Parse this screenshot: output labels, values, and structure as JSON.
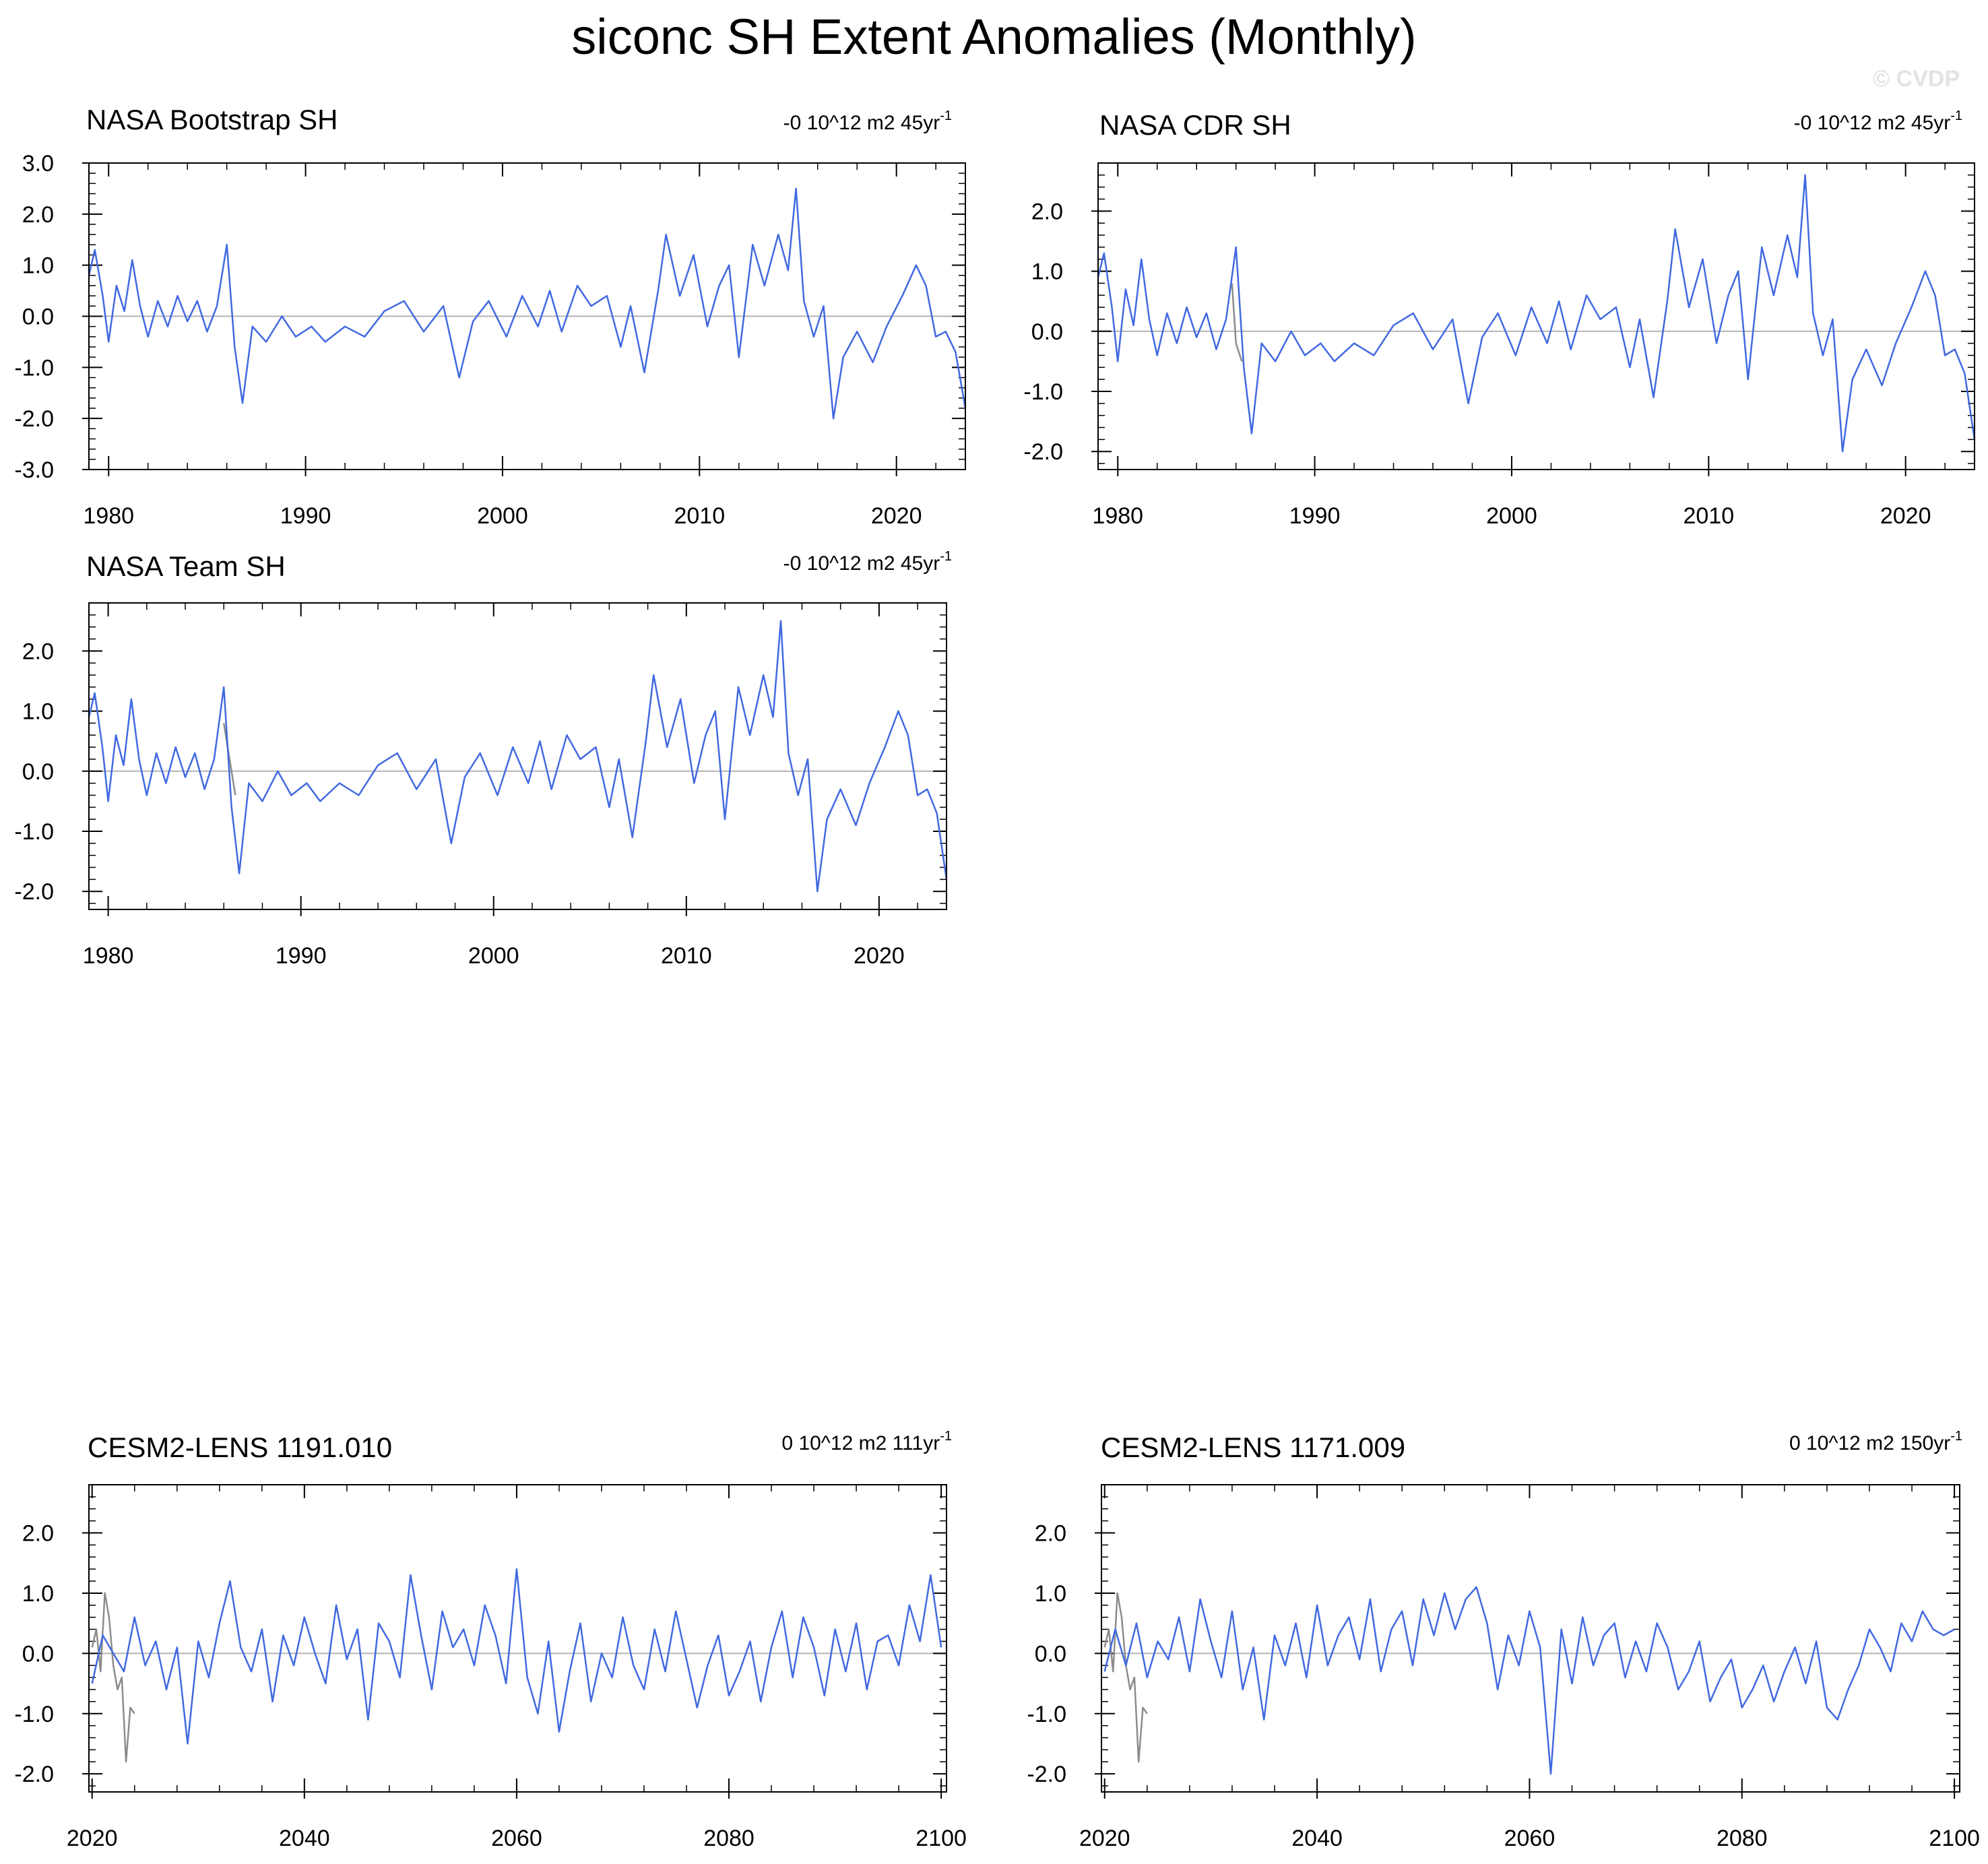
{
  "title": "siconc SH Extent Anomalies (Monthly)",
  "watermark": "© CVDP",
  "colors": {
    "series": "#4169e1",
    "reference": "#8c8c8c",
    "zero_line": "#b4b4b4",
    "frame": "#000000"
  },
  "chart_data": [
    {
      "type": "line",
      "title": "NASA Bootstrap SH",
      "trend_label": "-0 10^12 m2 45yr",
      "trend_exponent": "-1",
      "xlim": [
        1979,
        2023.5
      ],
      "ylim": [
        -3.0,
        3.0
      ],
      "xticks": [
        1980,
        1990,
        2000,
        2010,
        2020
      ],
      "xtick_labels": [
        "1980",
        "1990",
        "2000",
        "2010",
        "2020"
      ],
      "yticks": [
        -3.0,
        -2.0,
        -1.0,
        0.0,
        1.0,
        2.0,
        3.0
      ],
      "ytick_labels": [
        "-3.0",
        "-2.0",
        "-1.0",
        "0.0",
        "1.0",
        "2.0",
        "3.0"
      ],
      "series": [
        {
          "role": "observed",
          "x": [
            1979.0,
            1979.3,
            1979.7,
            1980.0,
            1980.4,
            1980.8,
            1981.2,
            1981.6,
            1982.0,
            1982.5,
            1983.0,
            1983.5,
            1984.0,
            1984.5,
            1985.0,
            1985.5,
            1986.0,
            1986.4,
            1986.8,
            1987.3,
            1988.0,
            1988.8,
            1989.5,
            1990.3,
            1991.0,
            1992.0,
            1993.0,
            1994.0,
            1995.0,
            1996.0,
            1997.0,
            1997.8,
            1998.5,
            1999.3,
            2000.2,
            2001.0,
            2001.8,
            2002.4,
            2003.0,
            2003.8,
            2004.5,
            2005.3,
            2006.0,
            2006.5,
            2007.2,
            2007.9,
            2008.3,
            2009.0,
            2009.7,
            2010.4,
            2011.0,
            2011.5,
            2012.0,
            2012.7,
            2013.3,
            2014.0,
            2014.5,
            2014.9,
            2015.3,
            2015.8,
            2016.3,
            2016.8,
            2017.3,
            2018.0,
            2018.8,
            2019.5,
            2020.3,
            2021.0,
            2021.5,
            2022.0,
            2022.5,
            2023.0,
            2023.5
          ],
          "y": [
            0.8,
            1.3,
            0.4,
            -0.5,
            0.6,
            0.1,
            1.1,
            0.2,
            -0.4,
            0.3,
            -0.2,
            0.4,
            -0.1,
            0.3,
            -0.3,
            0.2,
            1.4,
            -0.6,
            -1.7,
            -0.2,
            -0.5,
            0.0,
            -0.4,
            -0.2,
            -0.5,
            -0.2,
            -0.4,
            0.1,
            0.3,
            -0.3,
            0.2,
            -1.2,
            -0.1,
            0.3,
            -0.4,
            0.4,
            -0.2,
            0.5,
            -0.3,
            0.6,
            0.2,
            0.4,
            -0.6,
            0.2,
            -1.1,
            0.5,
            1.6,
            0.4,
            1.2,
            -0.2,
            0.6,
            1.0,
            -0.8,
            1.4,
            0.6,
            1.6,
            0.9,
            2.5,
            0.3,
            -0.4,
            0.2,
            -2.0,
            -0.8,
            -0.3,
            -0.9,
            -0.2,
            0.4,
            1.0,
            0.6,
            -0.4,
            -0.3,
            -0.7,
            -1.8
          ]
        }
      ]
    },
    {
      "type": "line",
      "title": "NASA CDR SH",
      "trend_label": "-0 10^12 m2 45yr",
      "trend_exponent": "-1",
      "xlim": [
        1979,
        2023.5
      ],
      "ylim": [
        -2.3,
        2.8
      ],
      "xticks": [
        1980,
        1990,
        2000,
        2010,
        2020
      ],
      "xtick_labels": [
        "1980",
        "1990",
        "2000",
        "2010",
        "2020"
      ],
      "yticks": [
        -2.0,
        -1.0,
        0.0,
        1.0,
        2.0
      ],
      "ytick_labels": [
        "-2.0",
        "-1.0",
        "0.0",
        "1.0",
        "2.0"
      ],
      "series": [
        {
          "role": "reference",
          "x": [
            1985.8,
            1986.0,
            1986.3
          ],
          "y": [
            0.8,
            -0.2,
            -0.5
          ]
        },
        {
          "role": "observed",
          "x": [
            1979.0,
            1979.3,
            1979.7,
            1980.0,
            1980.4,
            1980.8,
            1981.2,
            1981.6,
            1982.0,
            1982.5,
            1983.0,
            1983.5,
            1984.0,
            1984.5,
            1985.0,
            1985.5,
            1986.0,
            1986.4,
            1986.8,
            1987.3,
            1988.0,
            1988.8,
            1989.5,
            1990.3,
            1991.0,
            1992.0,
            1993.0,
            1994.0,
            1995.0,
            1996.0,
            1997.0,
            1997.8,
            1998.5,
            1999.3,
            2000.2,
            2001.0,
            2001.8,
            2002.4,
            2003.0,
            2003.8,
            2004.5,
            2005.3,
            2006.0,
            2006.5,
            2007.2,
            2007.9,
            2008.3,
            2009.0,
            2009.7,
            2010.4,
            2011.0,
            2011.5,
            2012.0,
            2012.7,
            2013.3,
            2014.0,
            2014.5,
            2014.9,
            2015.3,
            2015.8,
            2016.3,
            2016.8,
            2017.3,
            2018.0,
            2018.8,
            2019.5,
            2020.3,
            2021.0,
            2021.5,
            2022.0,
            2022.5,
            2023.0,
            2023.5
          ],
          "y": [
            0.9,
            1.3,
            0.4,
            -0.5,
            0.7,
            0.1,
            1.2,
            0.2,
            -0.4,
            0.3,
            -0.2,
            0.4,
            -0.1,
            0.3,
            -0.3,
            0.2,
            1.4,
            -0.6,
            -1.7,
            -0.2,
            -0.5,
            0.0,
            -0.4,
            -0.2,
            -0.5,
            -0.2,
            -0.4,
            0.1,
            0.3,
            -0.3,
            0.2,
            -1.2,
            -0.1,
            0.3,
            -0.4,
            0.4,
            -0.2,
            0.5,
            -0.3,
            0.6,
            0.2,
            0.4,
            -0.6,
            0.2,
            -1.1,
            0.5,
            1.7,
            0.4,
            1.2,
            -0.2,
            0.6,
            1.0,
            -0.8,
            1.4,
            0.6,
            1.6,
            0.9,
            2.6,
            0.3,
            -0.4,
            0.2,
            -2.0,
            -0.8,
            -0.3,
            -0.9,
            -0.2,
            0.4,
            1.0,
            0.6,
            -0.4,
            -0.3,
            -0.7,
            -1.8
          ]
        }
      ]
    },
    {
      "type": "line",
      "title": "NASA Team SH",
      "trend_label": "-0 10^12 m2 45yr",
      "trend_exponent": "-1",
      "xlim": [
        1979,
        2023.5
      ],
      "ylim": [
        -2.3,
        2.8
      ],
      "xticks": [
        1980,
        1990,
        2000,
        2010,
        2020
      ],
      "xtick_labels": [
        "1980",
        "1990",
        "2000",
        "2010",
        "2020"
      ],
      "yticks": [
        -2.0,
        -1.0,
        0.0,
        1.0,
        2.0
      ],
      "ytick_labels": [
        "-2.0",
        "-1.0",
        "0.0",
        "1.0",
        "2.0"
      ],
      "series": [
        {
          "role": "reference",
          "x": [
            1986.0,
            1986.3,
            1986.6
          ],
          "y": [
            0.8,
            0.2,
            -0.4
          ]
        },
        {
          "role": "observed",
          "x": [
            1979.0,
            1979.3,
            1979.7,
            1980.0,
            1980.4,
            1980.8,
            1981.2,
            1981.6,
            1982.0,
            1982.5,
            1983.0,
            1983.5,
            1984.0,
            1984.5,
            1985.0,
            1985.5,
            1986.0,
            1986.4,
            1986.8,
            1987.3,
            1988.0,
            1988.8,
            1989.5,
            1990.3,
            1991.0,
            1992.0,
            1993.0,
            1994.0,
            1995.0,
            1996.0,
            1997.0,
            1997.8,
            1998.5,
            1999.3,
            2000.2,
            2001.0,
            2001.8,
            2002.4,
            2003.0,
            2003.8,
            2004.5,
            2005.3,
            2006.0,
            2006.5,
            2007.2,
            2007.9,
            2008.3,
            2009.0,
            2009.7,
            2010.4,
            2011.0,
            2011.5,
            2012.0,
            2012.7,
            2013.3,
            2014.0,
            2014.5,
            2014.9,
            2015.3,
            2015.8,
            2016.3,
            2016.8,
            2017.3,
            2018.0,
            2018.8,
            2019.5,
            2020.3,
            2021.0,
            2021.5,
            2022.0,
            2022.5,
            2023.0,
            2023.5
          ],
          "y": [
            0.9,
            1.3,
            0.4,
            -0.5,
            0.6,
            0.1,
            1.2,
            0.2,
            -0.4,
            0.3,
            -0.2,
            0.4,
            -0.1,
            0.3,
            -0.3,
            0.2,
            1.4,
            -0.6,
            -1.7,
            -0.2,
            -0.5,
            0.0,
            -0.4,
            -0.2,
            -0.5,
            -0.2,
            -0.4,
            0.1,
            0.3,
            -0.3,
            0.2,
            -1.2,
            -0.1,
            0.3,
            -0.4,
            0.4,
            -0.2,
            0.5,
            -0.3,
            0.6,
            0.2,
            0.4,
            -0.6,
            0.2,
            -1.1,
            0.5,
            1.6,
            0.4,
            1.2,
            -0.2,
            0.6,
            1.0,
            -0.8,
            1.4,
            0.6,
            1.6,
            0.9,
            2.5,
            0.3,
            -0.4,
            0.2,
            -2.0,
            -0.8,
            -0.3,
            -0.9,
            -0.2,
            0.4,
            1.0,
            0.6,
            -0.4,
            -0.3,
            -0.7,
            -1.8
          ]
        }
      ]
    },
    {
      "type": "line",
      "title": "CESM2-LENS 1191.010",
      "trend_label": "0 10^12 m2 111yr",
      "trend_exponent": "-1",
      "xlim": [
        2019.7,
        2100.5
      ],
      "ylim": [
        -2.3,
        2.8
      ],
      "xticks": [
        2020,
        2040,
        2060,
        2080,
        2100
      ],
      "xtick_labels": [
        "2020",
        "2040",
        "2060",
        "2080",
        "2100"
      ],
      "yticks": [
        -2.0,
        -1.0,
        0.0,
        1.0,
        2.0
      ],
      "ytick_labels": [
        "-2.0",
        "-1.0",
        "0.0",
        "1.0",
        "2.0"
      ],
      "series": [
        {
          "role": "reference",
          "x": [
            2020.0,
            2020.4,
            2020.8,
            2021.2,
            2021.6,
            2022.0,
            2022.4,
            2022.8,
            2023.2,
            2023.6,
            2024.0
          ],
          "y": [
            0.1,
            0.4,
            -0.3,
            1.0,
            0.6,
            -0.2,
            -0.6,
            -0.4,
            -1.8,
            -0.9,
            -1.0
          ]
        },
        {
          "role": "model",
          "x": [
            2020.0,
            2021.0,
            2022.0,
            2023.0,
            2024.0,
            2025.0,
            2026.0,
            2027.0,
            2028.0,
            2029.0,
            2030.0,
            2031.0,
            2032.0,
            2033.0,
            2034.0,
            2035.0,
            2036.0,
            2037.0,
            2038.0,
            2039.0,
            2040.0,
            2041.0,
            2042.0,
            2043.0,
            2044.0,
            2045.0,
            2046.0,
            2047.0,
            2048.0,
            2049.0,
            2050.0,
            2051.0,
            2052.0,
            2053.0,
            2054.0,
            2055.0,
            2056.0,
            2057.0,
            2058.0,
            2059.0,
            2060.0,
            2061.0,
            2062.0,
            2063.0,
            2064.0,
            2065.0,
            2066.0,
            2067.0,
            2068.0,
            2069.0,
            2070.0,
            2071.0,
            2072.0,
            2073.0,
            2074.0,
            2075.0,
            2076.0,
            2077.0,
            2078.0,
            2079.0,
            2080.0,
            2081.0,
            2082.0,
            2083.0,
            2084.0,
            2085.0,
            2086.0,
            2087.0,
            2088.0,
            2089.0,
            2090.0,
            2091.0,
            2092.0,
            2093.0,
            2094.0,
            2095.0,
            2096.0,
            2097.0,
            2098.0,
            2099.0,
            2100.0
          ],
          "y": [
            -0.5,
            0.3,
            0.0,
            -0.3,
            0.6,
            -0.2,
            0.2,
            -0.6,
            0.1,
            -1.5,
            0.2,
            -0.4,
            0.5,
            1.2,
            0.1,
            -0.3,
            0.4,
            -0.8,
            0.3,
            -0.2,
            0.6,
            0.0,
            -0.5,
            0.8,
            -0.1,
            0.4,
            -1.1,
            0.5,
            0.2,
            -0.4,
            1.3,
            0.3,
            -0.6,
            0.7,
            0.1,
            0.4,
            -0.2,
            0.8,
            0.3,
            -0.5,
            1.4,
            -0.4,
            -1.0,
            0.2,
            -1.3,
            -0.3,
            0.5,
            -0.8,
            0.0,
            -0.4,
            0.6,
            -0.2,
            -0.6,
            0.4,
            -0.3,
            0.7,
            -0.1,
            -0.9,
            -0.2,
            0.3,
            -0.7,
            -0.3,
            0.2,
            -0.8,
            0.1,
            0.7,
            -0.4,
            0.6,
            0.1,
            -0.7,
            0.4,
            -0.3,
            0.5,
            -0.6,
            0.2,
            0.3,
            -0.2,
            0.8,
            0.2,
            1.3,
            0.1
          ]
        }
      ]
    },
    {
      "type": "line",
      "title": "CESM2-LENS 1171.009",
      "trend_label": "0 10^12 m2 150yr",
      "trend_exponent": "-1",
      "xlim": [
        2019.7,
        2100.5
      ],
      "ylim": [
        -2.3,
        2.8
      ],
      "xticks": [
        2020,
        2040,
        2060,
        2080,
        2100
      ],
      "xtick_labels": [
        "2020",
        "2040",
        "2060",
        "2080",
        "2100"
      ],
      "yticks": [
        -2.0,
        -1.0,
        0.0,
        1.0,
        2.0
      ],
      "ytick_labels": [
        "-2.0",
        "-1.0",
        "0.0",
        "1.0",
        "2.0"
      ],
      "series": [
        {
          "role": "reference",
          "x": [
            2020.0,
            2020.4,
            2020.8,
            2021.2,
            2021.6,
            2022.0,
            2022.4,
            2022.8,
            2023.2,
            2023.6,
            2024.0
          ],
          "y": [
            0.1,
            0.4,
            -0.3,
            1.0,
            0.6,
            -0.2,
            -0.6,
            -0.4,
            -1.8,
            -0.9,
            -1.0
          ]
        },
        {
          "role": "model",
          "x": [
            2020.0,
            2021.0,
            2022.0,
            2023.0,
            2024.0,
            2025.0,
            2026.0,
            2027.0,
            2028.0,
            2029.0,
            2030.0,
            2031.0,
            2032.0,
            2033.0,
            2034.0,
            2035.0,
            2036.0,
            2037.0,
            2038.0,
            2039.0,
            2040.0,
            2041.0,
            2042.0,
            2043.0,
            2044.0,
            2045.0,
            2046.0,
            2047.0,
            2048.0,
            2049.0,
            2050.0,
            2051.0,
            2052.0,
            2053.0,
            2054.0,
            2055.0,
            2056.0,
            2057.0,
            2058.0,
            2059.0,
            2060.0,
            2061.0,
            2062.0,
            2063.0,
            2064.0,
            2065.0,
            2066.0,
            2067.0,
            2068.0,
            2069.0,
            2070.0,
            2071.0,
            2072.0,
            2073.0,
            2074.0,
            2075.0,
            2076.0,
            2077.0,
            2078.0,
            2079.0,
            2080.0,
            2081.0,
            2082.0,
            2083.0,
            2084.0,
            2085.0,
            2086.0,
            2087.0,
            2088.0,
            2089.0,
            2090.0,
            2091.0,
            2092.0,
            2093.0,
            2094.0,
            2095.0,
            2096.0,
            2097.0,
            2098.0,
            2099.0,
            2100.0
          ],
          "y": [
            -0.3,
            0.4,
            -0.2,
            0.5,
            -0.4,
            0.2,
            -0.1,
            0.6,
            -0.3,
            0.9,
            0.2,
            -0.4,
            0.7,
            -0.6,
            0.1,
            -1.1,
            0.3,
            -0.2,
            0.5,
            -0.4,
            0.8,
            -0.2,
            0.3,
            0.6,
            -0.1,
            0.9,
            -0.3,
            0.4,
            0.7,
            -0.2,
            0.9,
            0.3,
            1.0,
            0.4,
            0.9,
            1.1,
            0.5,
            -0.6,
            0.3,
            -0.2,
            0.7,
            0.1,
            -2.0,
            0.4,
            -0.5,
            0.6,
            -0.2,
            0.3,
            0.5,
            -0.4,
            0.2,
            -0.3,
            0.5,
            0.1,
            -0.6,
            -0.3,
            0.2,
            -0.8,
            -0.4,
            -0.1,
            -0.9,
            -0.6,
            -0.2,
            -0.8,
            -0.3,
            0.1,
            -0.5,
            0.2,
            -0.9,
            -1.1,
            -0.6,
            -0.2,
            0.4,
            0.1,
            -0.3,
            0.5,
            0.2,
            0.7,
            0.4,
            0.3,
            0.4
          ]
        }
      ]
    }
  ]
}
